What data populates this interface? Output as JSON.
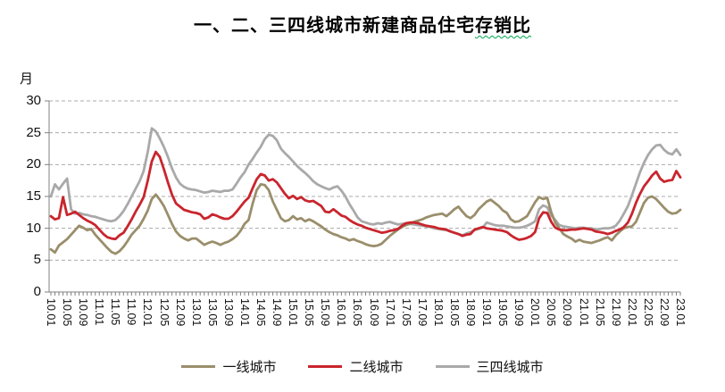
{
  "title": {
    "prefix": "一、二、三四线城市新建商品住宅",
    "wavy": "存销比"
  },
  "y_axis": {
    "unit": "月",
    "ticks": [
      0,
      5,
      10,
      15,
      20,
      25,
      30
    ]
  },
  "colors": {
    "tier1": "#9A8E6B",
    "tier2": "#C9252D",
    "tier34": "#A9A9A9",
    "axis": "#808080",
    "grid": "#ABABAB",
    "text": "#111111",
    "title_underline": "#00A650"
  },
  "chart_data": {
    "type": "line",
    "title": "一、二、三四线城市新建商品住宅存销比",
    "ylabel": "月",
    "ylim": [
      0,
      30
    ],
    "grid": "horizontal-dashed",
    "legend_position": "bottom",
    "x_start": "10.01",
    "x_end": "23.01",
    "x_monthly_count": 157,
    "x_label_every": 4,
    "x_tick_labels": [
      "10.01",
      "10.05",
      "10.09",
      "11.01",
      "11.05",
      "11.09",
      "12.01",
      "12.05",
      "12.09",
      "13.01",
      "13.05",
      "13.09",
      "14.01",
      "14.05",
      "14.09",
      "15.01",
      "15.05",
      "15.09",
      "16.01",
      "16.05",
      "16.09",
      "17.01",
      "17.05",
      "17.09",
      "18.01",
      "18.05",
      "18.09",
      "19.01",
      "19.05",
      "19.09",
      "20.01",
      "20.05",
      "20.09",
      "21.01",
      "21.05",
      "21.09",
      "22.01",
      "22.05",
      "22.09",
      "23.01"
    ],
    "series": [
      {
        "name": "一线城市",
        "key": "tier-1-cities",
        "color": "#9A8E6B",
        "values": [
          6.7,
          6.2,
          7.3,
          7.8,
          8.3,
          9.0,
          9.7,
          10.4,
          10.1,
          9.7,
          9.9,
          9.0,
          8.3,
          7.6,
          6.9,
          6.3,
          6.0,
          6.4,
          7.1,
          8.0,
          9.0,
          9.7,
          10.4,
          11.5,
          12.8,
          14.6,
          15.3,
          14.5,
          13.5,
          12.1,
          10.7,
          9.5,
          8.8,
          8.4,
          8.1,
          8.4,
          8.4,
          7.9,
          7.4,
          7.7,
          7.9,
          7.7,
          7.4,
          7.7,
          7.9,
          8.3,
          8.8,
          9.6,
          10.7,
          11.3,
          13.9,
          16.0,
          16.9,
          16.8,
          16.0,
          14.2,
          12.9,
          11.6,
          11.1,
          11.3,
          11.9,
          11.4,
          11.6,
          11.1,
          11.4,
          11.1,
          10.7,
          10.3,
          9.8,
          9.4,
          9.1,
          8.9,
          8.6,
          8.4,
          8.1,
          8.3,
          8.0,
          7.8,
          7.5,
          7.3,
          7.2,
          7.3,
          7.6,
          8.2,
          8.8,
          9.3,
          9.8,
          10.2,
          10.5,
          10.7,
          11.0,
          11.2,
          11.4,
          11.7,
          11.9,
          12.1,
          12.2,
          12.3,
          11.9,
          12.4,
          13.0,
          13.4,
          12.6,
          11.9,
          11.6,
          12.1,
          13.0,
          13.6,
          14.2,
          14.5,
          14.0,
          13.5,
          12.8,
          12.4,
          11.4,
          11.0,
          11.1,
          11.5,
          11.9,
          13.0,
          14.1,
          14.9,
          14.6,
          14.8,
          12.5,
          10.9,
          10.0,
          9.1,
          8.7,
          8.4,
          7.9,
          8.2,
          7.9,
          7.8,
          7.7,
          7.9,
          8.1,
          8.4,
          8.6,
          8.1,
          8.9,
          9.5,
          10.0,
          10.2,
          10.3,
          11.0,
          12.5,
          14.0,
          14.8,
          15.0,
          14.6,
          13.9,
          13.2,
          12.6,
          12.3,
          12.4,
          12.9
        ]
      },
      {
        "name": "二线城市",
        "key": "tier-2-cities",
        "color": "#C9252D",
        "values": [
          11.9,
          11.4,
          11.6,
          14.9,
          12.1,
          12.3,
          12.6,
          12.1,
          11.6,
          11.2,
          10.9,
          10.5,
          9.8,
          9.1,
          8.6,
          8.4,
          8.3,
          8.9,
          9.3,
          10.3,
          11.4,
          12.6,
          13.7,
          14.9,
          17.5,
          20.5,
          22.0,
          21.2,
          19.3,
          17.2,
          15.3,
          13.9,
          13.4,
          12.9,
          12.7,
          12.5,
          12.4,
          12.2,
          11.5,
          11.7,
          12.2,
          12.0,
          11.7,
          11.5,
          11.5,
          11.9,
          12.6,
          13.4,
          14.2,
          14.8,
          16.3,
          17.7,
          18.5,
          18.3,
          17.5,
          17.7,
          17.2,
          16.3,
          15.4,
          14.7,
          15.1,
          14.6,
          14.9,
          14.4,
          14.2,
          14.3,
          13.9,
          13.5,
          12.6,
          12.5,
          13.0,
          12.5,
          12.0,
          11.8,
          11.3,
          10.9,
          10.6,
          10.4,
          10.1,
          9.9,
          9.7,
          9.5,
          9.3,
          9.4,
          9.6,
          9.7,
          9.9,
          10.4,
          10.8,
          10.9,
          10.9,
          10.8,
          10.6,
          10.4,
          10.3,
          10.2,
          10.0,
          9.9,
          9.8,
          9.5,
          9.3,
          9.1,
          8.8,
          9.0,
          9.1,
          9.8,
          10.0,
          10.2,
          10.0,
          9.9,
          9.8,
          9.7,
          9.6,
          9.4,
          8.9,
          8.5,
          8.2,
          8.3,
          8.5,
          8.8,
          9.4,
          11.6,
          12.5,
          12.4,
          11.0,
          10.1,
          9.8,
          9.7,
          9.7,
          9.8,
          9.8,
          9.9,
          10.0,
          9.9,
          9.8,
          9.5,
          9.4,
          9.3,
          9.1,
          9.3,
          9.6,
          9.8,
          10.2,
          10.9,
          12.3,
          14.0,
          15.4,
          16.6,
          17.4,
          18.3,
          18.9,
          17.8,
          17.3,
          17.5,
          17.6,
          19.0,
          18.0
        ]
      },
      {
        "name": "三四线城市",
        "key": "tier-3-4-cities",
        "color": "#A9A9A9",
        "values": [
          15.0,
          16.9,
          16.1,
          17.0,
          17.8,
          13.0,
          12.3,
          12.4,
          12.2,
          12.1,
          11.9,
          11.8,
          11.6,
          11.4,
          11.2,
          11.1,
          11.3,
          11.9,
          12.7,
          13.8,
          15.0,
          16.2,
          17.4,
          19.0,
          22.0,
          25.7,
          25.2,
          24.1,
          22.8,
          21.2,
          19.4,
          18.0,
          17.0,
          16.5,
          16.2,
          16.1,
          16.0,
          15.8,
          15.6,
          15.7,
          15.9,
          15.8,
          15.7,
          15.9,
          15.9,
          16.1,
          17.0,
          18.0,
          18.8,
          20.0,
          20.9,
          21.9,
          22.8,
          24.0,
          24.7,
          24.5,
          23.8,
          22.5,
          21.8,
          21.2,
          20.5,
          19.8,
          19.2,
          18.7,
          18.1,
          17.4,
          16.9,
          16.6,
          16.3,
          16.1,
          16.4,
          16.6,
          15.9,
          15.0,
          13.8,
          12.8,
          11.7,
          11.1,
          10.9,
          10.7,
          10.6,
          10.8,
          10.7,
          10.9,
          11.0,
          10.8,
          10.6,
          10.7,
          10.8,
          10.7,
          10.6,
          10.5,
          10.4,
          10.3,
          10.2,
          10.0,
          9.9,
          9.8,
          9.7,
          9.5,
          9.3,
          9.1,
          8.9,
          9.2,
          9.4,
          9.7,
          9.9,
          10.1,
          10.9,
          10.7,
          10.5,
          10.4,
          10.4,
          10.3,
          10.2,
          10.1,
          10.1,
          10.2,
          10.4,
          10.7,
          11.1,
          13.0,
          13.6,
          13.3,
          12.0,
          11.3,
          10.5,
          10.3,
          10.2,
          10.1,
          10.0,
          10.1,
          10.1,
          10.0,
          10.0,
          9.8,
          9.9,
          10.0,
          10.0,
          10.1,
          10.4,
          11.2,
          12.3,
          13.5,
          15.2,
          17.0,
          18.8,
          20.3,
          21.5,
          22.4,
          23.0,
          23.1,
          22.3,
          21.8,
          21.6,
          22.4,
          21.5
        ]
      }
    ]
  }
}
